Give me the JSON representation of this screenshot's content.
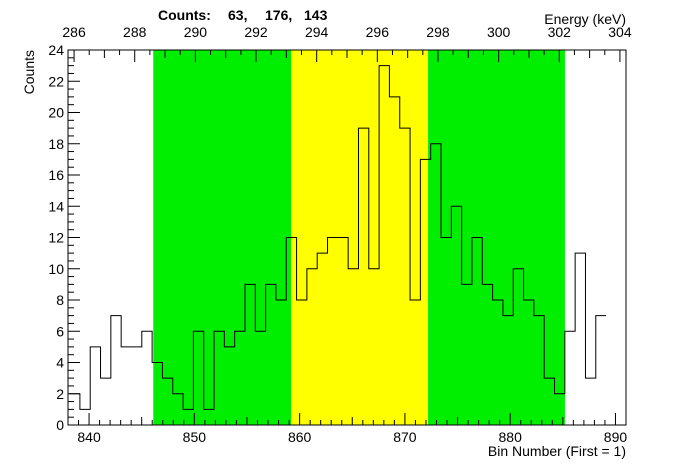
{
  "chart_data": {
    "type": "bar",
    "title": "",
    "counts_label": "Counts:",
    "counts_values": [
      "63,",
      "176,",
      "143"
    ],
    "xlabel": "Bin Number (First = 1)",
    "ylabel": "Counts",
    "x2label": "Energy (keV)",
    "xlim": [
      838,
      891
    ],
    "ylim": [
      0,
      24
    ],
    "x2lim": [
      285.8,
      304.2
    ],
    "x_ticks": [
      "840",
      "850",
      "860",
      "870",
      "880",
      "890"
    ],
    "y_ticks": [
      "0",
      "2",
      "4",
      "6",
      "8",
      "10",
      "12",
      "14",
      "16",
      "18",
      "20",
      "22",
      "24"
    ],
    "x2_ticks": [
      "286",
      "288",
      "290",
      "292",
      "294",
      "296",
      "298",
      "300",
      "302",
      "304"
    ],
    "grid": false,
    "regions": [
      {
        "name": "left-background",
        "color": "#00ee00",
        "from": 846.1,
        "to": 859.2
      },
      {
        "name": "peak",
        "color": "#ffff00",
        "from": 859.2,
        "to": 872.2
      },
      {
        "name": "right-background",
        "color": "#00ee00",
        "from": 872.2,
        "to": 885.2
      }
    ],
    "bin_start": 838.15,
    "bin_width": 0.98,
    "values": [
      2,
      1,
      5,
      3,
      7,
      5,
      5,
      6,
      4,
      3,
      2,
      1,
      6,
      1,
      6,
      5,
      6,
      9,
      6,
      9,
      8,
      12,
      8,
      10,
      11,
      12,
      12,
      10,
      19,
      10,
      23,
      21,
      19,
      8,
      17,
      18,
      12,
      14,
      9,
      12,
      9,
      8,
      7,
      10,
      8,
      7,
      3,
      2,
      6,
      11,
      3,
      7
    ]
  }
}
